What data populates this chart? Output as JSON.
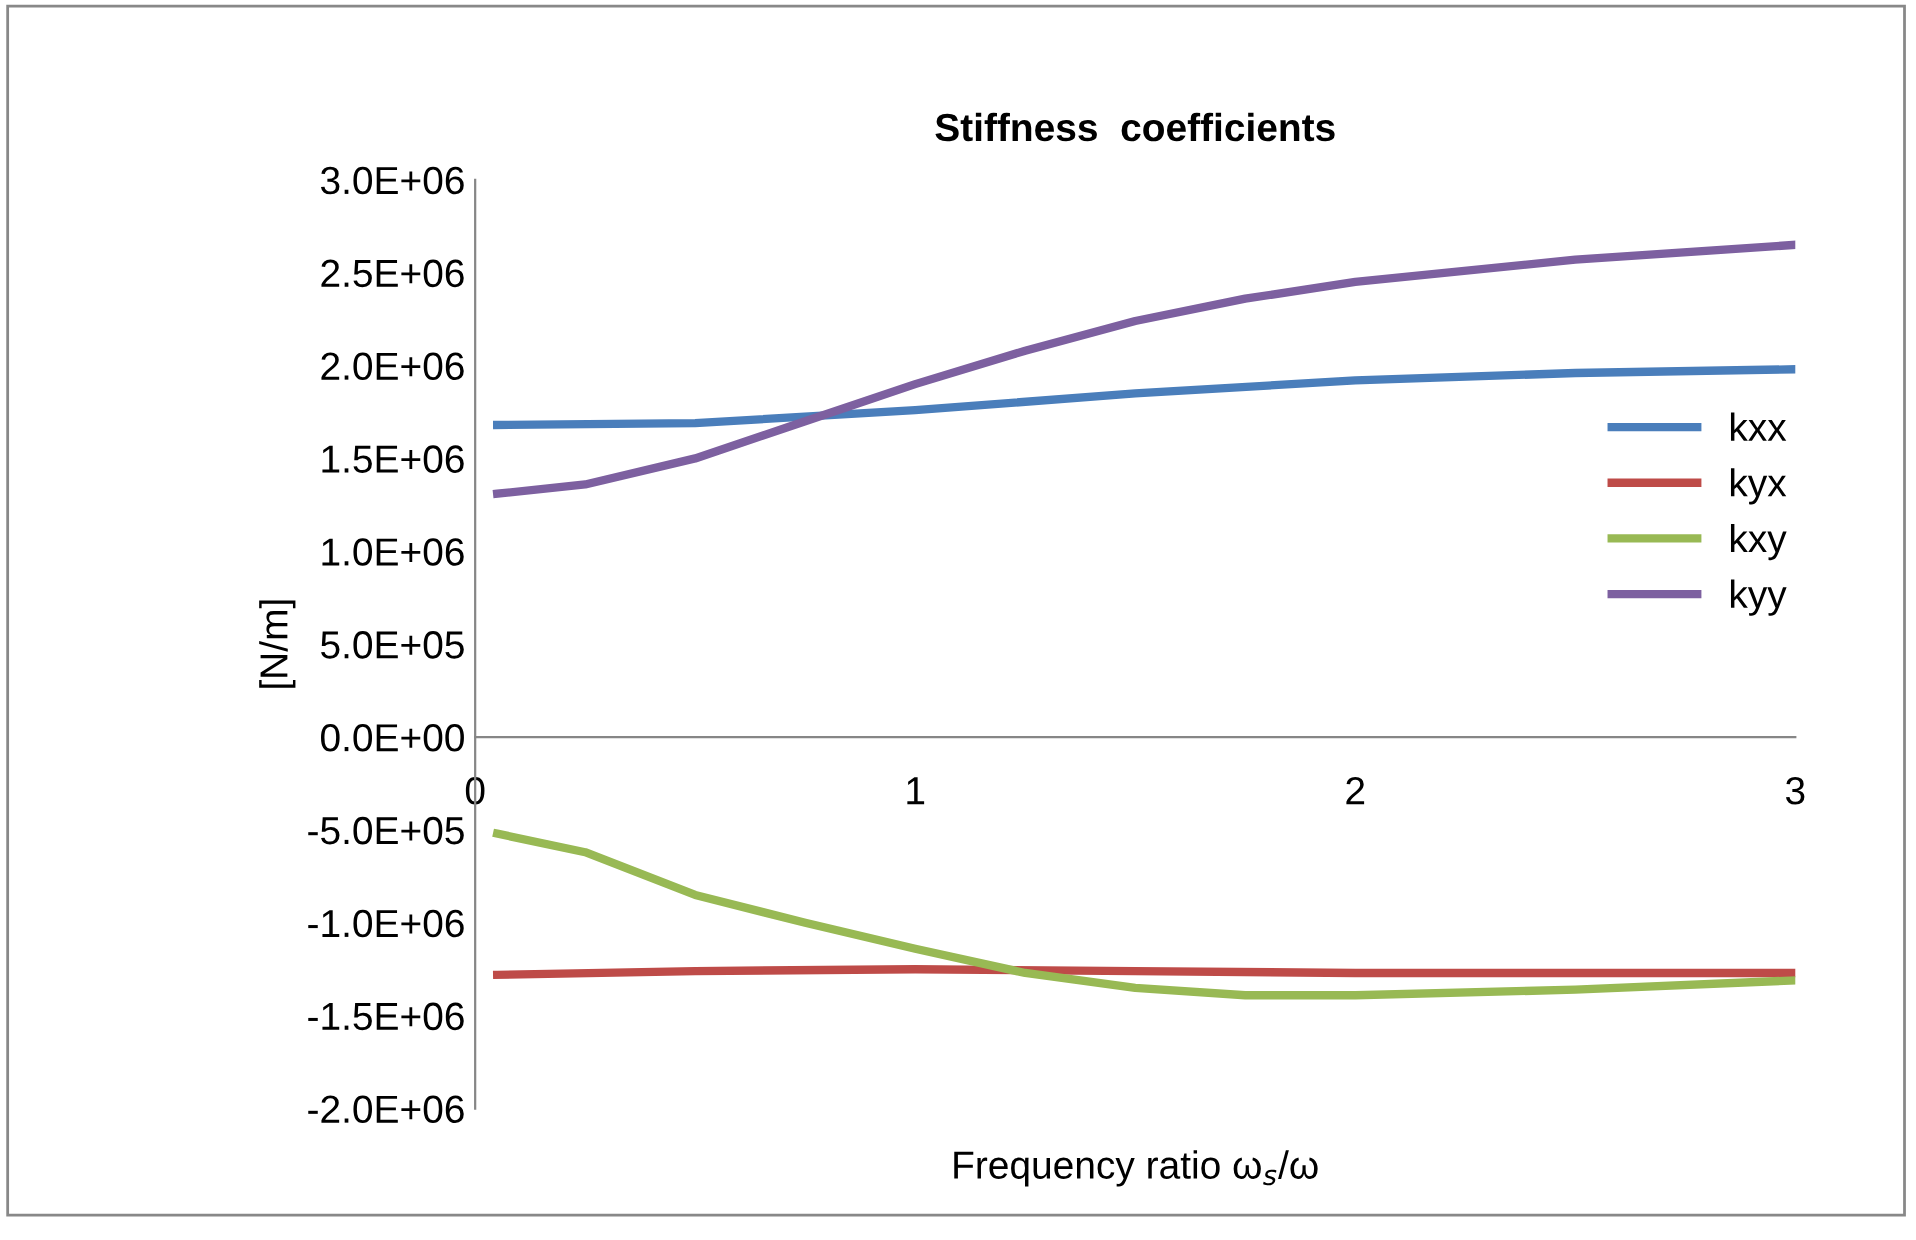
{
  "chart_data": {
    "type": "line",
    "title": "Stiffness  coefficients",
    "xlabel": "Frequency ratio ω$_{s}$/ω",
    "ylabel": "[N/m]",
    "xlim": [
      0,
      3
    ],
    "xticks": [
      0,
      1,
      2,
      3
    ],
    "ylim": [
      -2000000,
      3000000
    ],
    "yticks": [
      {
        "value": -2000000,
        "label": "-2.0E+06"
      },
      {
        "value": -1500000,
        "label": "-1.5E+06"
      },
      {
        "value": -1000000,
        "label": "-1.0E+06"
      },
      {
        "value": -500000,
        "label": "-5.0E+05"
      },
      {
        "value": 0,
        "label": "0.0E+00"
      },
      {
        "value": 500000,
        "label": "5.0E+05"
      },
      {
        "value": 1000000,
        "label": "1.0E+06"
      },
      {
        "value": 1500000,
        "label": "1.5E+06"
      },
      {
        "value": 2000000,
        "label": "2.0E+06"
      },
      {
        "value": 2500000,
        "label": "2.5E+06"
      },
      {
        "value": 3000000,
        "label": "3.0E+06"
      }
    ],
    "grid": false,
    "legend": "right",
    "marker": "none",
    "line_style": "solid",
    "series": [
      {
        "name": "kxx",
        "color": "#4a7ebb",
        "x": [
          0.05,
          0.5,
          1,
          1.5,
          2,
          2.5,
          3
        ],
        "values": [
          1680000,
          1690000,
          1760000,
          1850000,
          1920000,
          1960000,
          1980000
        ]
      },
      {
        "name": "kyx",
        "color": "#be4b48",
        "x": [
          0.05,
          0.5,
          1,
          1.5,
          2,
          2.5,
          3
        ],
        "values": [
          -1280000,
          -1260000,
          -1250000,
          -1260000,
          -1270000,
          -1270000,
          -1270000
        ]
      },
      {
        "name": "kxy",
        "color": "#98b954",
        "x": [
          0.05,
          0.25,
          0.5,
          0.75,
          1,
          1.25,
          1.5,
          1.75,
          2,
          2.5,
          3
        ],
        "values": [
          -520000,
          -620000,
          -850000,
          -1000000,
          -1140000,
          -1270000,
          -1350000,
          -1390000,
          -1390000,
          -1360000,
          -1310000
        ]
      },
      {
        "name": "kyy",
        "color": "#7d60a0",
        "x": [
          0.05,
          0.25,
          0.5,
          0.75,
          1,
          1.25,
          1.5,
          1.75,
          2,
          2.5,
          3
        ],
        "values": [
          1310000,
          1360000,
          1500000,
          1700000,
          1900000,
          2080000,
          2240000,
          2360000,
          2450000,
          2570000,
          2650000
        ]
      }
    ]
  }
}
